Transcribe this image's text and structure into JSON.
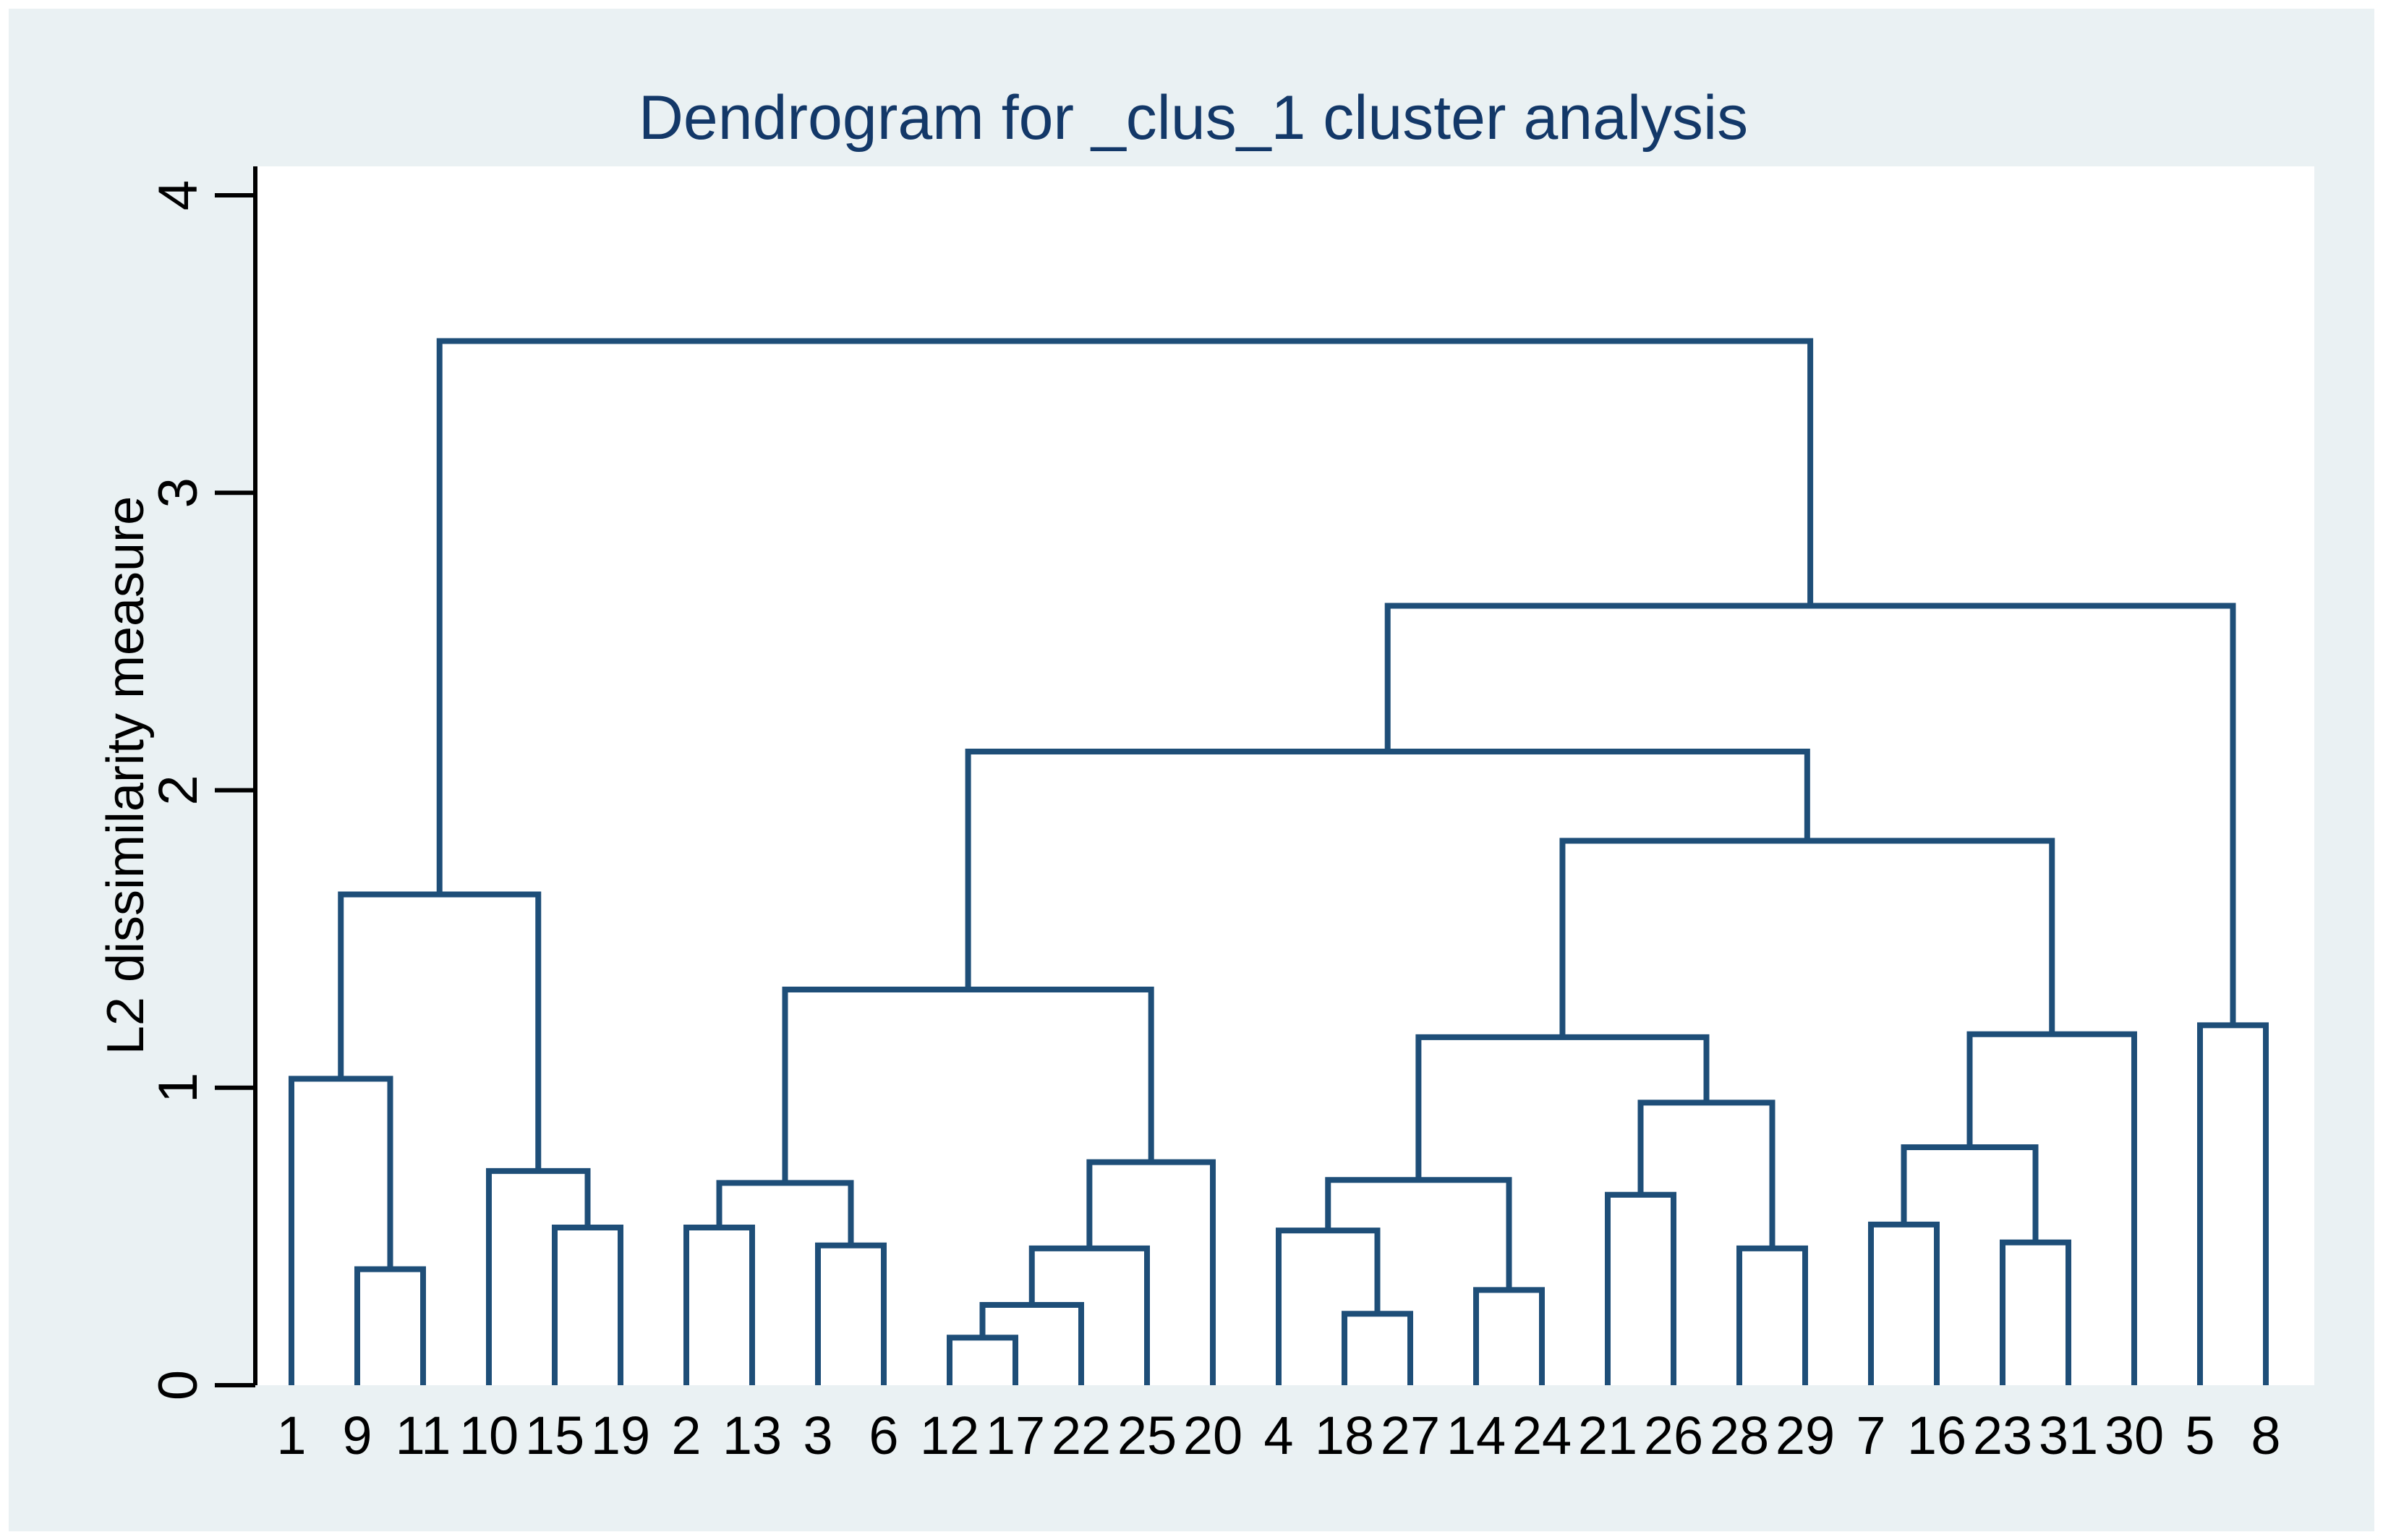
{
  "chart_data": {
    "type": "dendrogram",
    "title": "Dendrogram for _clus_1 cluster analysis",
    "ylabel": "L2 dissimilarity measure",
    "xlabel": "",
    "ylim": [
      0,
      4
    ],
    "yticks": [
      "0",
      "1",
      "2",
      "3",
      "4"
    ],
    "grid": false,
    "legend": "none",
    "n_leaves": 31,
    "leaf_order": [
      "1",
      "9",
      "11",
      "10",
      "15",
      "19",
      "2",
      "13",
      "3",
      "6",
      "12",
      "17",
      "22",
      "25",
      "20",
      "4",
      "18",
      "27",
      "14",
      "24",
      "21",
      "26",
      "28",
      "29",
      "7",
      "16",
      "23",
      "31",
      "30",
      "5",
      "8"
    ],
    "colors": {
      "line": "#1e4e78",
      "title": "#133868",
      "background": "#eaf1f3",
      "plot_background": "#ffffff",
      "axis": "#000000",
      "label": "#000000"
    },
    "tree": {
      "h": 3.51,
      "children": [
        {
          "h": 1.65,
          "children": [
            {
              "h": 1.03,
              "children": [
                {
                  "leaf": "1"
                },
                {
                  "h": 0.39,
                  "children": [
                    {
                      "leaf": "9"
                    },
                    {
                      "leaf": "11"
                    }
                  ]
                }
              ]
            },
            {
              "h": 0.72,
              "children": [
                {
                  "leaf": "10"
                },
                {
                  "h": 0.53,
                  "children": [
                    {
                      "leaf": "15"
                    },
                    {
                      "leaf": "19"
                    }
                  ]
                }
              ]
            }
          ]
        },
        {
          "h": 2.62,
          "children": [
            {
              "h": 2.13,
              "children": [
                {
                  "h": 1.33,
                  "children": [
                    {
                      "h": 0.68,
                      "children": [
                        {
                          "h": 0.53,
                          "children": [
                            {
                              "leaf": "2"
                            },
                            {
                              "leaf": "13"
                            }
                          ]
                        },
                        {
                          "h": 0.47,
                          "children": [
                            {
                              "leaf": "3"
                            },
                            {
                              "leaf": "6"
                            }
                          ]
                        }
                      ]
                    },
                    {
                      "h": 0.75,
                      "children": [
                        {
                          "h": 0.46,
                          "children": [
                            {
                              "h": 0.27,
                              "children": [
                                {
                                  "h": 0.16,
                                  "children": [
                                    {
                                      "leaf": "12"
                                    },
                                    {
                                      "leaf": "17"
                                    }
                                  ]
                                },
                                {
                                  "leaf": "22"
                                }
                              ]
                            },
                            {
                              "leaf": "25"
                            }
                          ]
                        },
                        {
                          "leaf": "20"
                        }
                      ]
                    }
                  ]
                },
                {
                  "h": 1.83,
                  "children": [
                    {
                      "h": 1.17,
                      "children": [
                        {
                          "h": 0.69,
                          "children": [
                            {
                              "h": 0.52,
                              "children": [
                                {
                                  "leaf": "4"
                                },
                                {
                                  "h": 0.24,
                                  "children": [
                                    {
                                      "leaf": "18"
                                    },
                                    {
                                      "leaf": "27"
                                    }
                                  ]
                                }
                              ]
                            },
                            {
                              "h": 0.32,
                              "children": [
                                {
                                  "leaf": "14"
                                },
                                {
                                  "leaf": "24"
                                }
                              ]
                            }
                          ]
                        },
                        {
                          "h": 0.95,
                          "children": [
                            {
                              "h": 0.64,
                              "children": [
                                {
                                  "leaf": "21"
                                },
                                {
                                  "leaf": "26"
                                }
                              ]
                            },
                            {
                              "h": 0.46,
                              "children": [
                                {
                                  "leaf": "28"
                                },
                                {
                                  "leaf": "29"
                                }
                              ]
                            }
                          ]
                        }
                      ]
                    },
                    {
                      "h": 1.18,
                      "children": [
                        {
                          "h": 0.8,
                          "children": [
                            {
                              "h": 0.54,
                              "children": [
                                {
                                  "leaf": "7"
                                },
                                {
                                  "leaf": "16"
                                }
                              ]
                            },
                            {
                              "h": 0.48,
                              "children": [
                                {
                                  "leaf": "23"
                                },
                                {
                                  "leaf": "31"
                                }
                              ]
                            }
                          ]
                        },
                        {
                          "leaf": "30"
                        }
                      ]
                    }
                  ]
                }
              ]
            },
            {
              "h": 1.21,
              "children": [
                {
                  "leaf": "5"
                },
                {
                  "leaf": "8"
                }
              ]
            }
          ]
        }
      ]
    }
  }
}
